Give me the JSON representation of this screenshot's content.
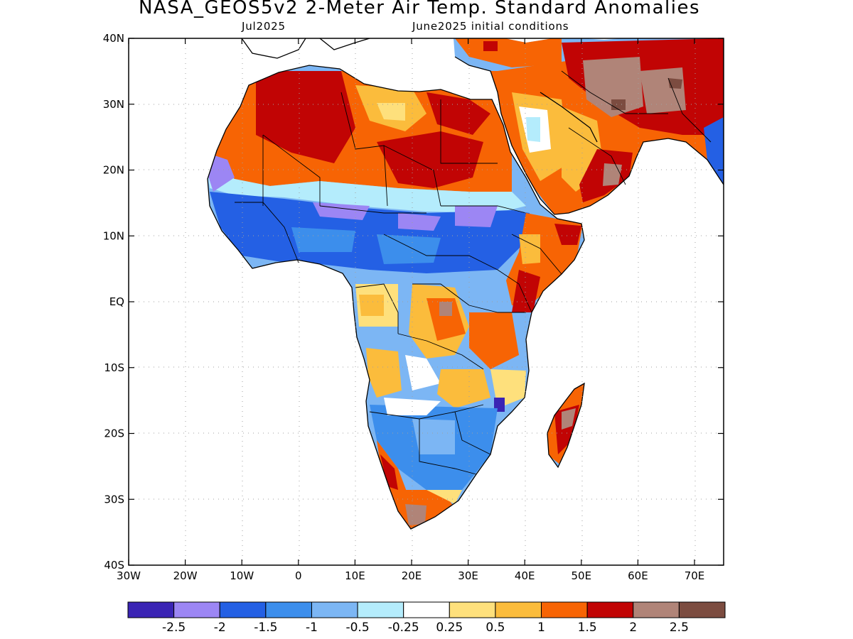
{
  "title": "NASA_GEOS5v2 2-Meter Air Temp. Standard Anomalies",
  "subtitle_left": "Jul2025",
  "subtitle_right": "June2025 initial conditions",
  "lat_labels": [
    "40N",
    "30N",
    "20N",
    "10N",
    "EQ",
    "10S",
    "20S",
    "30S",
    "40S"
  ],
  "lon_labels": [
    "30W",
    "20W",
    "10W",
    "0",
    "10E",
    "20E",
    "30E",
    "40E",
    "50E",
    "60E",
    "70E"
  ],
  "colorbar": {
    "colors": [
      "#3a24b4",
      "#9c86f4",
      "#2460e4",
      "#3c8eec",
      "#7cb6f4",
      "#b4ecfc",
      "#ffffff",
      "#fee07c",
      "#fbbc3c",
      "#f76404",
      "#c10404",
      "#b08478",
      "#7c4c40"
    ],
    "labels": [
      "-2.5",
      "-2",
      "-1.5",
      "-1",
      "-0.5",
      "-0.25",
      "0.25",
      "0.5",
      "1",
      "1.5",
      "2",
      "2.5"
    ]
  },
  "colors": {
    "ocean": "#ffffff",
    "coast": "#000000",
    "grid": "#a0a0a0"
  }
}
